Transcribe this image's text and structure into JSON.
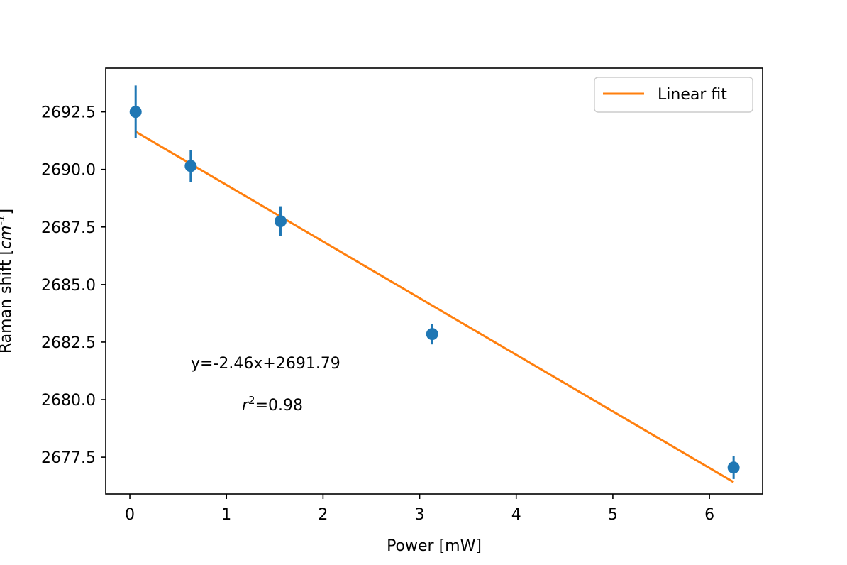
{
  "chart_data": {
    "type": "scatter",
    "title": "",
    "xlabel": "Power [mW]",
    "ylabel": "Raman shift [",
    "ylabel_unit_base": "cm",
    "ylabel_unit_exp": "-1",
    "ylabel_close": "]",
    "xlim": [
      -0.25,
      6.55
    ],
    "ylim": [
      2675.9,
      2694.4
    ],
    "xticks": [
      0,
      1,
      2,
      3,
      4,
      5,
      6
    ],
    "xtick_labels": [
      "0",
      "1",
      "2",
      "3",
      "4",
      "5",
      "6"
    ],
    "yticks": [
      2677.5,
      2680.0,
      2682.5,
      2685.0,
      2687.5,
      2690.0,
      2692.5
    ],
    "ytick_labels": [
      "2677.5",
      "2680.0",
      "2682.5",
      "2685.0",
      "2687.5",
      "2690.0",
      "2692.5"
    ],
    "grid": false,
    "series": [
      {
        "kind": "errorbar",
        "color": "#1f77b4",
        "x": [
          0.06,
          0.63,
          1.56,
          3.13,
          6.25
        ],
        "y": [
          2692.5,
          2690.15,
          2687.75,
          2682.85,
          2677.05
        ],
        "yerr": [
          1.15,
          0.7,
          0.65,
          0.45,
          0.5
        ]
      },
      {
        "kind": "line",
        "name": "Linear fit",
        "color": "#ff7f0e",
        "x": [
          0.06,
          6.25
        ],
        "y": [
          2691.64,
          2676.415
        ]
      }
    ],
    "legend": {
      "position": "top-right",
      "entries": [
        "Linear fit"
      ]
    },
    "annotations": {
      "equation": "y=-2.46x+2691.79",
      "r2_var": "r",
      "r2_exp": "2",
      "r2_value": "=0.98"
    }
  }
}
